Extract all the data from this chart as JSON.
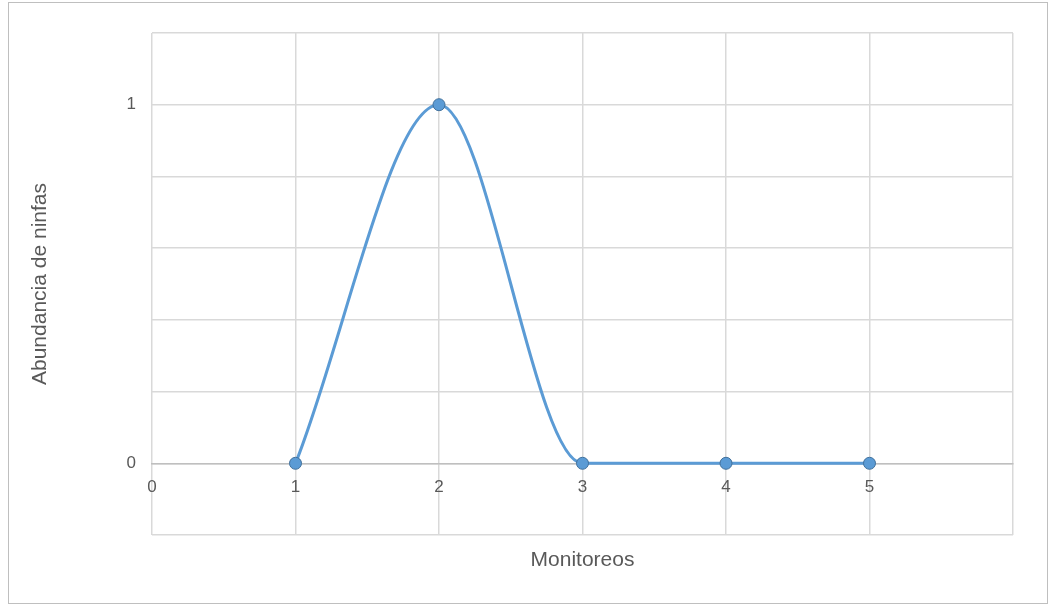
{
  "chart_data": {
    "type": "line",
    "xlabel": "Monitoreos",
    "ylabel": "Abundancia de ninfas",
    "x": [
      1,
      2,
      3,
      4,
      5
    ],
    "series": [
      {
        "color": "#5b9bd5",
        "values": [
          0,
          1,
          0,
          0,
          0
        ]
      }
    ],
    "xlim": [
      0,
      6
    ],
    "xticks": [
      0,
      1,
      2,
      3,
      4,
      5,
      {
        "value": 6,
        "label": null
      }
    ],
    "ylim": [
      -0.2,
      1.2
    ],
    "yticks": [
      {
        "value": -0.2,
        "label": null
      },
      0,
      {
        "value": 0.2,
        "label": null
      },
      {
        "value": 0.4,
        "label": null
      },
      {
        "value": 0.6,
        "label": null
      },
      {
        "value": 0.8,
        "label": null
      },
      1,
      {
        "value": 1.2,
        "label": null
      }
    ],
    "grid": true,
    "legend": false,
    "marker": "circle",
    "line_style": "solid"
  }
}
